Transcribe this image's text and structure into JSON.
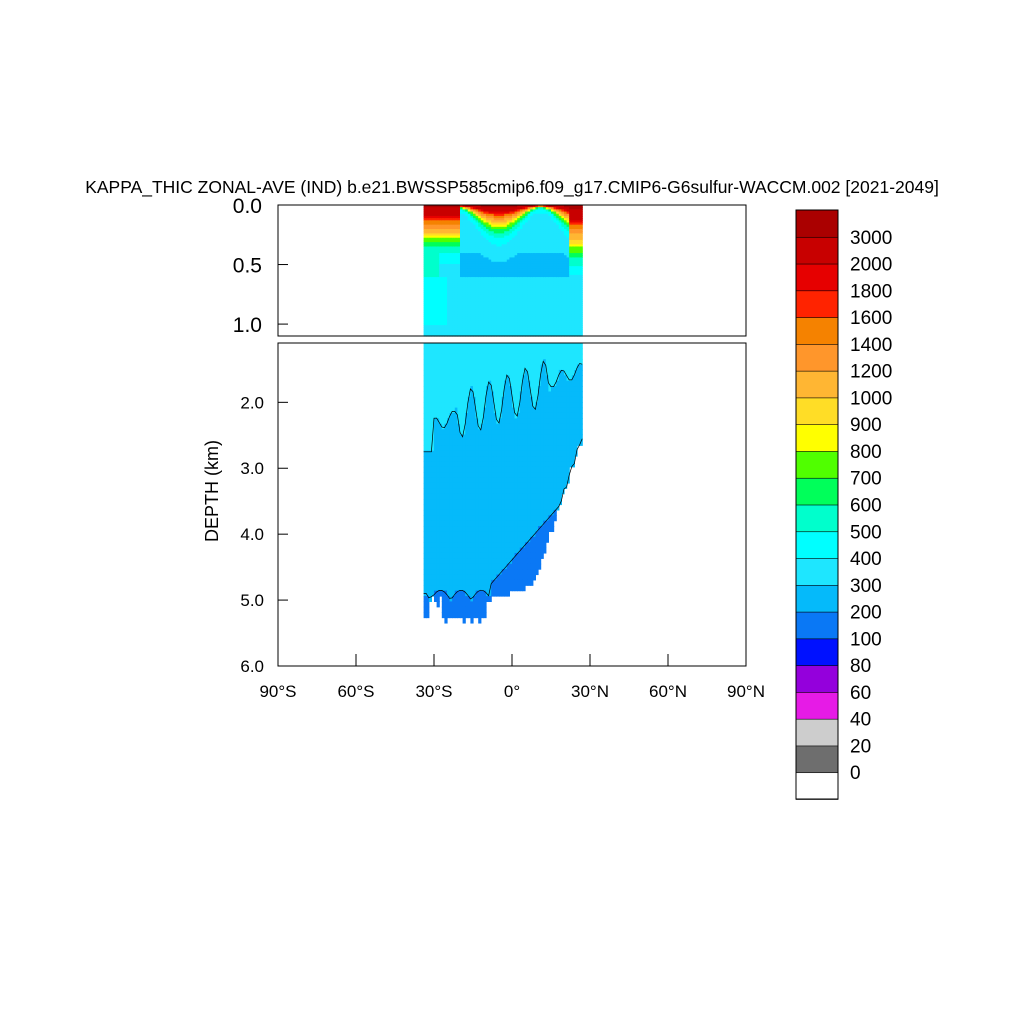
{
  "chart_data": {
    "type": "heatmap",
    "title": "KAPPA_THIC ZONAL-AVE (IND) b.e21.BWSSP585cmip6.f09_g17.CMIP6-G6sulfur-WACCM.002 [2021-2049]",
    "ylabel": "DEPTH (km)",
    "xlabel": "",
    "x_ticks": [
      "90°S",
      "60°S",
      "30°S",
      "0°",
      "30°N",
      "60°N",
      "90°N"
    ],
    "x_tick_values": [
      -90,
      -60,
      -30,
      0,
      30,
      60,
      90
    ],
    "xlim": [
      -90,
      90
    ],
    "upper_panel": {
      "ylim": [
        0.0,
        1.1
      ],
      "y_ticks": [
        "0.0",
        "0.5",
        "1.0"
      ],
      "y_tick_values": [
        0.0,
        0.5,
        1.0
      ]
    },
    "lower_panel": {
      "ylim": [
        1.1,
        6.0
      ],
      "y_ticks": [
        "2.0",
        "3.0",
        "4.0",
        "5.0",
        "6.0"
      ],
      "y_tick_values": [
        2.0,
        3.0,
        4.0,
        5.0,
        6.0
      ]
    },
    "data_extent": {
      "lat_min": -34,
      "lat_max": 27,
      "max_depth_km": 5.4
    },
    "colorbar": {
      "levels": [
        "0",
        "20",
        "40",
        "60",
        "80",
        "100",
        "200",
        "300",
        "400",
        "500",
        "600",
        "700",
        "800",
        "900",
        "1000",
        "1200",
        "1400",
        "1600",
        "1800",
        "2000",
        "3000"
      ],
      "colors": [
        "#ffffff",
        "#6e6e6e",
        "#cdcdcd",
        "#e61be6",
        "#9400dc",
        "#0011ff",
        "#0a78f5",
        "#05bafa",
        "#1ee6ff",
        "#00ffff",
        "#00ffcc",
        "#00ff5a",
        "#50ff00",
        "#ffff00",
        "#ffdd26",
        "#ffb633",
        "#ff962b",
        "#f58200",
        "#ff2300",
        "#e60000",
        "#c80000",
        "#aa0000"
      ]
    },
    "grid": false,
    "legend_position": "right"
  }
}
